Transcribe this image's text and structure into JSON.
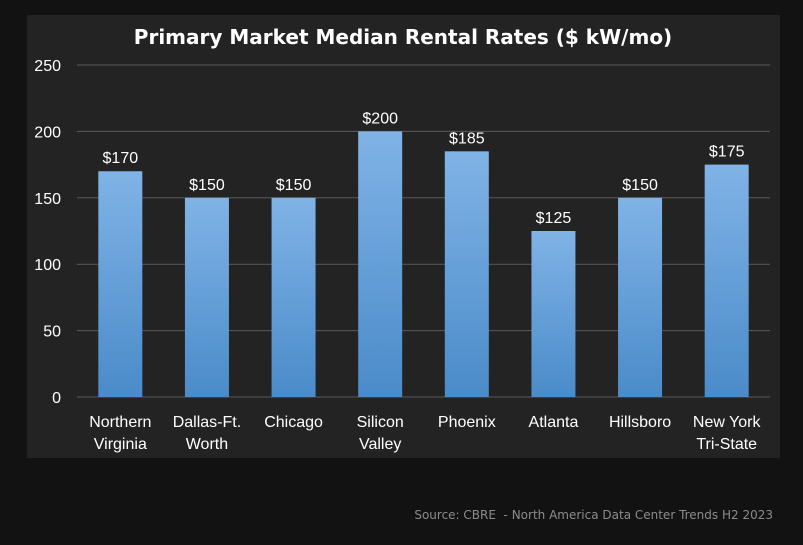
{
  "chart_data": {
    "type": "bar",
    "title": "Primary Market Median Rental Rates ($ kW/mo)",
    "categories": [
      [
        "Northern",
        "Virginia"
      ],
      [
        "Dallas-Ft.",
        "Worth"
      ],
      [
        "Chicago"
      ],
      [
        "Silicon",
        "Valley"
      ],
      [
        "Phoenix"
      ],
      [
        "Atlanta"
      ],
      [
        "Hillsboro"
      ],
      [
        "New York",
        "Tri-State"
      ]
    ],
    "values": [
      170,
      150,
      150,
      200,
      185,
      125,
      150,
      175
    ],
    "data_labels": [
      "$170",
      "$150",
      "$150",
      "$200",
      "$185",
      "$125",
      "$150",
      "$175"
    ],
    "ylim": [
      0,
      250
    ],
    "yticks": [
      0,
      50,
      100,
      150,
      200,
      250
    ],
    "grid": true,
    "colors": {
      "bar_top": "#80b3e6",
      "bar_bottom": "#4a8bc9",
      "grid": "#5a5a5a",
      "panel": "#232323",
      "page": "#121212"
    }
  },
  "source": "Source: CBRE  - North America Data Center Trends H2 2023"
}
